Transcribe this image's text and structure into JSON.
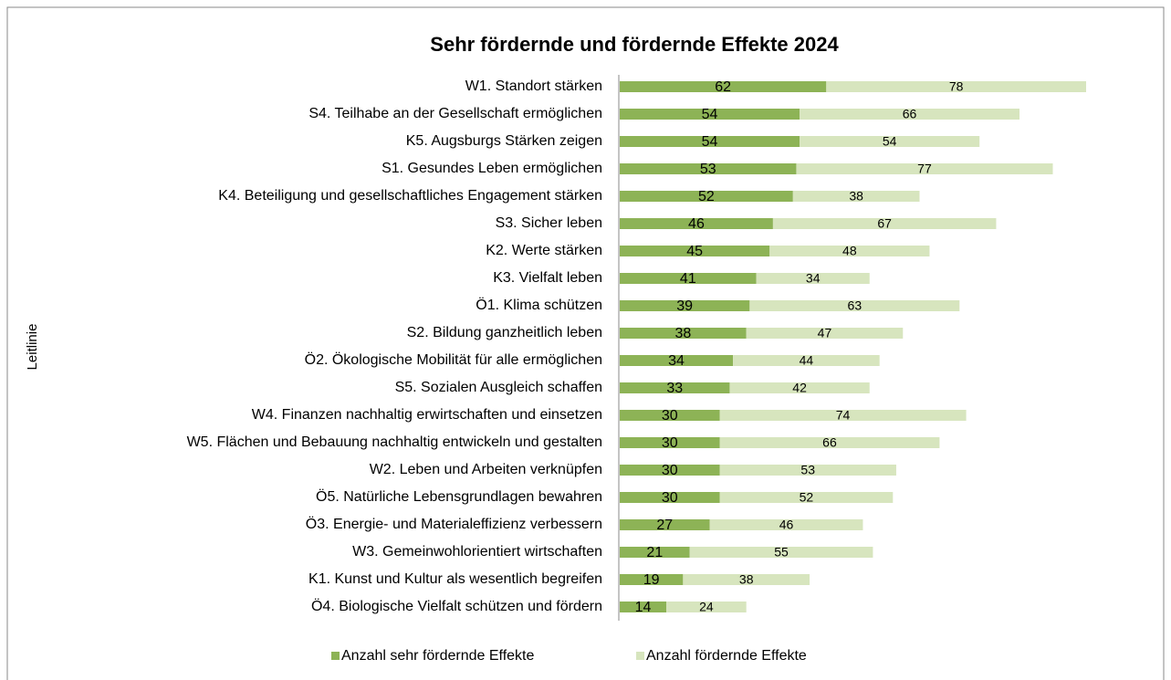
{
  "chart_data": {
    "type": "stacked-bar-horizontal",
    "title": "Sehr fördernde und fördernde Effekte 2024",
    "y_label": "Leitlinie",
    "categories": [
      "W1. Standort stärken",
      "S4. Teilhabe an der Gesellschaft ermöglichen",
      "K5. Augsburgs Stärken zeigen",
      "S1. Gesundes Leben ermöglichen",
      "K4. Beteiligung und gesellschaftliches Engagement stärken",
      "S3. Sicher leben",
      "K2. Werte stärken",
      "K3. Vielfalt leben",
      "Ö1. Klima schützen",
      "S2. Bildung ganzheitlich leben",
      "Ö2. Ökologische Mobilität für alle ermöglichen",
      "S5. Sozialen Ausgleich schaffen",
      "W4. Finanzen nachhaltig erwirtschaften und einsetzen",
      "W5. Flächen und Bebauung nachhaltig entwickeln und gestalten",
      "W2. Leben und Arbeiten verknüpfen",
      "Ö5. Natürliche Lebensgrundlagen bewahren",
      "Ö3. Energie- und Materialeffizienz verbessern",
      "W3. Gemeinwohlorientiert wirtschaften",
      "K1. Kunst und Kultur als wesentlich begreifen",
      "Ö4. Biologische Vielfalt schützen und fördern"
    ],
    "series": [
      {
        "name": "Anzahl sehr fördernde Effekte",
        "color": "#8db356",
        "values": [
          62,
          54,
          54,
          53,
          52,
          46,
          45,
          41,
          39,
          38,
          34,
          33,
          30,
          30,
          30,
          30,
          27,
          21,
          19,
          14
        ]
      },
      {
        "name": "Anzahl fördernde Effekte",
        "color": "#d7e5be",
        "values": [
          78,
          66,
          54,
          77,
          38,
          67,
          48,
          34,
          63,
          47,
          44,
          42,
          74,
          66,
          53,
          52,
          46,
          55,
          38,
          24
        ]
      }
    ],
    "legend": "bottom"
  }
}
